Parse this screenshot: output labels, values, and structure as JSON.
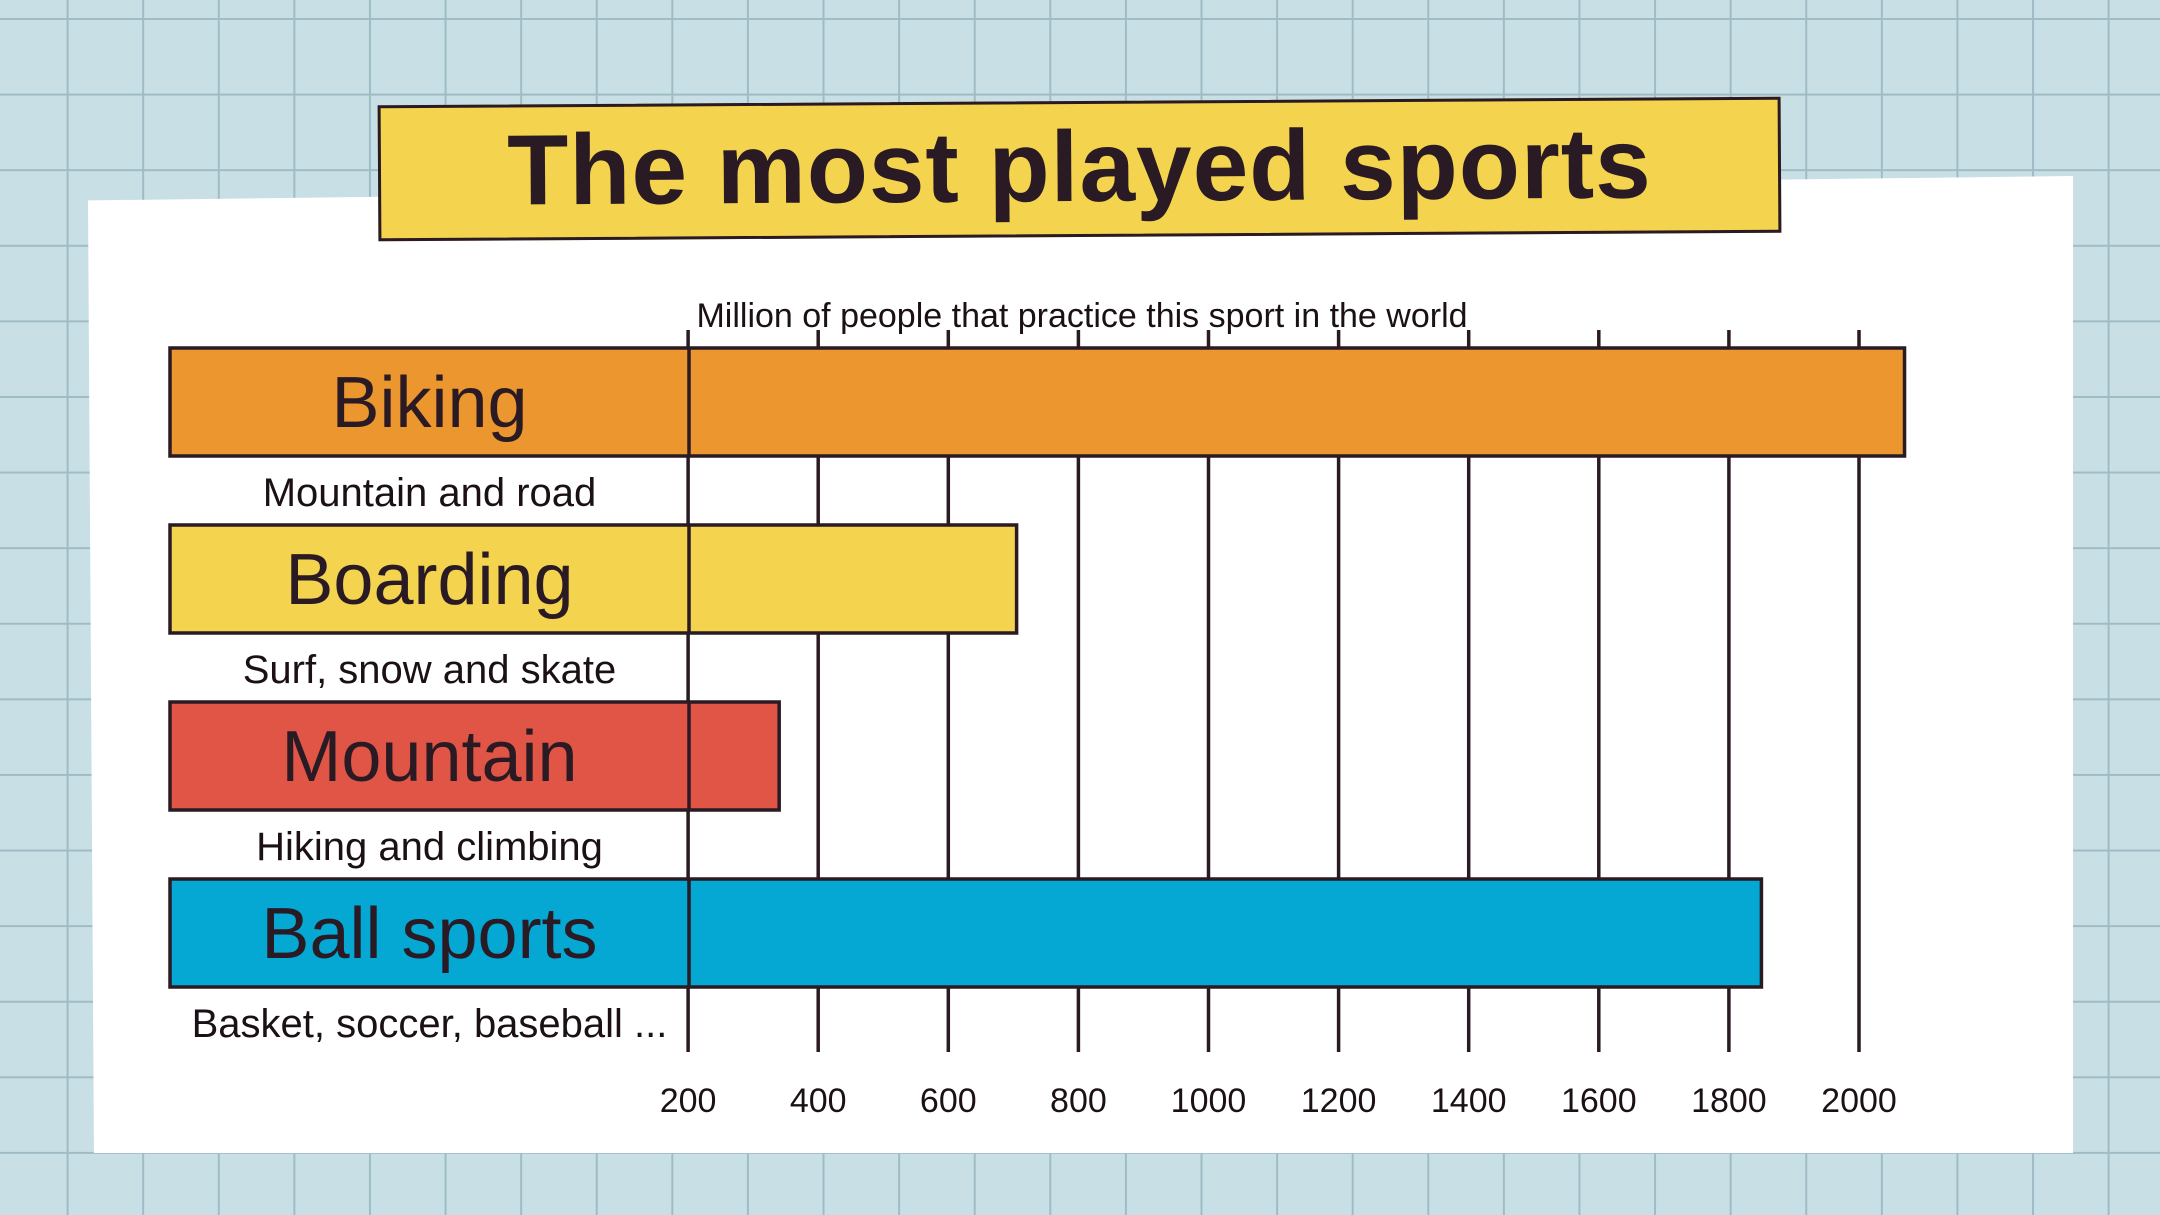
{
  "title": "The most played sports",
  "colors": {
    "background": "#c9dfe6",
    "grid": "#9fbcc6",
    "banner": "#f4d44f",
    "ink": "#2a1a24"
  },
  "chart_data": {
    "type": "bar",
    "orientation": "horizontal",
    "title": "The most played sports",
    "xlabel": "Million of people that practice this sport in the world",
    "ylabel": "",
    "xlim": [
      0,
      2000
    ],
    "x_ticks": [
      200,
      400,
      600,
      800,
      1000,
      1200,
      1400,
      1600,
      1800,
      2000
    ],
    "grid": true,
    "categories": [
      "Biking",
      "Boarding",
      "Mountain",
      "Ball sports"
    ],
    "subtitles": [
      "Mountain and road",
      "Surf, snow and skate",
      "Hiking and climbing",
      "Basket, soccer, baseball ..."
    ],
    "values": [
      2070,
      705,
      340,
      1850
    ],
    "colors": [
      "#eb962e",
      "#f4d44f",
      "#e05545",
      "#05a7d3"
    ]
  }
}
